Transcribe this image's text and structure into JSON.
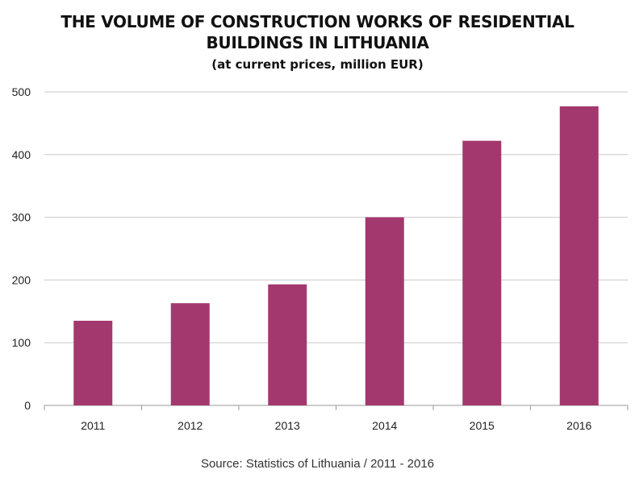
{
  "header": {
    "title_line1": "THE VOLUME OF CONSTRUCTION WORKS OF RESIDENTIAL",
    "title_line2": "BUILDINGS IN LITHUANIA",
    "subtitle": "(at current prices, million EUR)"
  },
  "footer": {
    "source": "Source: Statistics of Lithuania / 2011 - 2016"
  },
  "chart_data": {
    "type": "bar",
    "title": "THE VOLUME OF CONSTRUCTION WORKS OF RESIDENTIAL BUILDINGS IN LITHUANIA",
    "subtitle": "(at current prices, million EUR)",
    "categories": [
      "2011",
      "2012",
      "2013",
      "2014",
      "2015",
      "2016"
    ],
    "values": [
      135,
      163,
      193,
      300,
      422,
      477
    ],
    "ylim": [
      0,
      500
    ],
    "yticks": [
      0,
      100,
      200,
      300,
      400,
      500
    ],
    "xlabel": "",
    "ylabel": "",
    "grid": true,
    "legend": "none",
    "bar_color": "#a3386e",
    "grid_color": "#c8c8c8"
  }
}
